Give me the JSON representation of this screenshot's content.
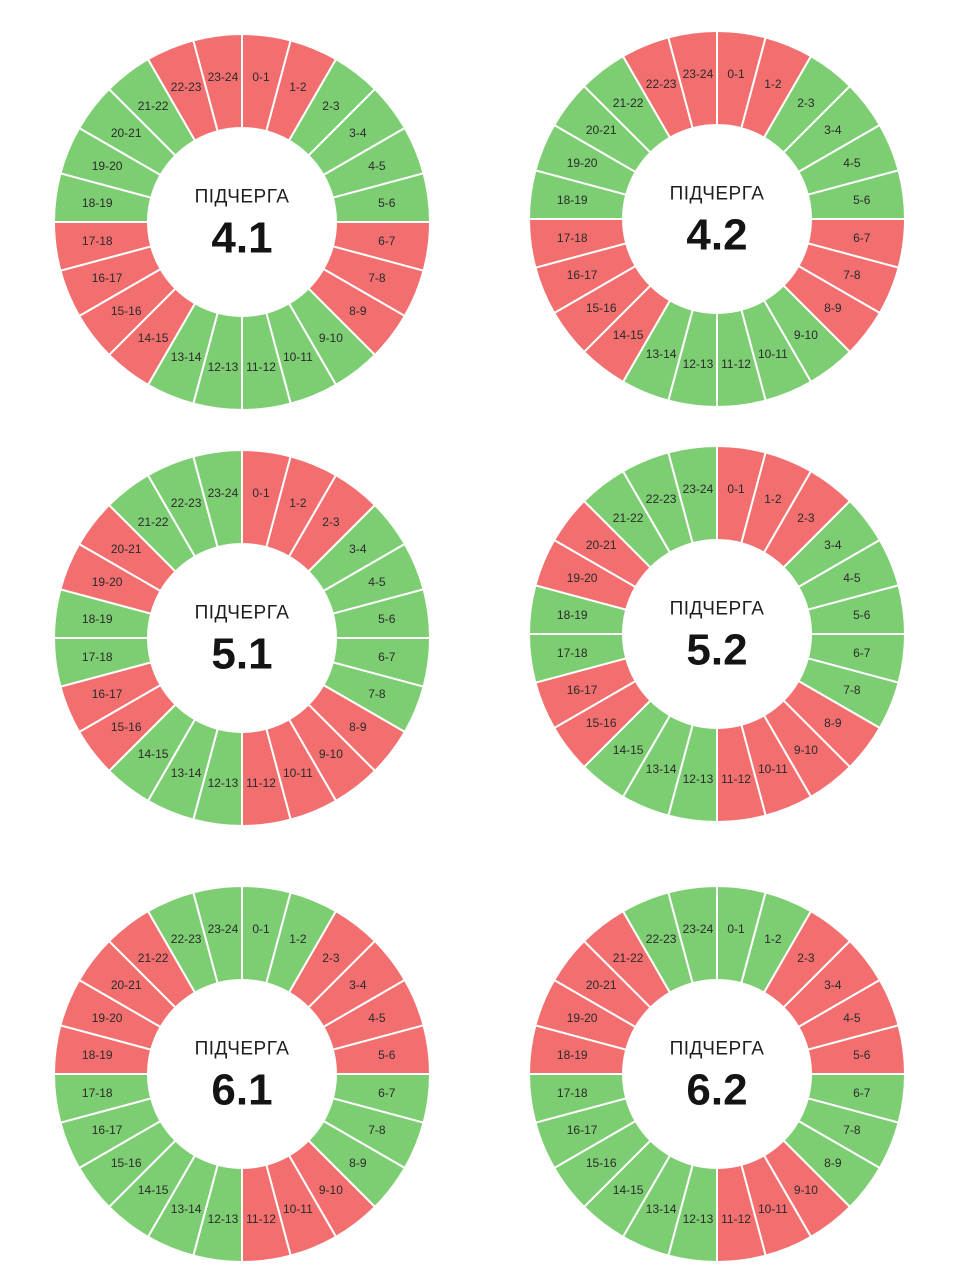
{
  "colors": {
    "on": "#7dce73",
    "off": "#f36f6f",
    "divider": "#ffffff",
    "text": "#2a2a2a",
    "center_bg": "#ffffff"
  },
  "hours": [
    "0-1",
    "1-2",
    "2-3",
    "3-4",
    "4-5",
    "5-6",
    "6-7",
    "7-8",
    "8-9",
    "9-10",
    "10-11",
    "11-12",
    "12-13",
    "13-14",
    "14-15",
    "15-16",
    "16-17",
    "17-18",
    "18-19",
    "19-20",
    "20-21",
    "21-22",
    "22-23",
    "23-24"
  ],
  "chart_data": [
    {
      "type": "pie",
      "title": "ПІДЧЕРГА",
      "queue": "4.1",
      "states": [
        "off",
        "off",
        "on",
        "on",
        "on",
        "on",
        "off",
        "off",
        "off",
        "on",
        "on",
        "on",
        "on",
        "on",
        "off",
        "off",
        "off",
        "off",
        "on",
        "on",
        "on",
        "on",
        "off",
        "off"
      ]
    },
    {
      "type": "pie",
      "title": "ПІДЧЕРГА",
      "queue": "4.2",
      "states": [
        "off",
        "off",
        "on",
        "on",
        "on",
        "on",
        "off",
        "off",
        "off",
        "on",
        "on",
        "on",
        "on",
        "on",
        "off",
        "off",
        "off",
        "off",
        "on",
        "on",
        "on",
        "on",
        "off",
        "off"
      ]
    },
    {
      "type": "pie",
      "title": "ПІДЧЕРГА",
      "queue": "5.1",
      "states": [
        "off",
        "off",
        "off",
        "on",
        "on",
        "on",
        "on",
        "on",
        "off",
        "off",
        "off",
        "off",
        "on",
        "on",
        "on",
        "off",
        "off",
        "on",
        "on",
        "off",
        "off",
        "on",
        "on",
        "on"
      ]
    },
    {
      "type": "pie",
      "title": "ПІДЧЕРГА",
      "queue": "5.2",
      "states": [
        "off",
        "off",
        "off",
        "on",
        "on",
        "on",
        "on",
        "on",
        "off",
        "off",
        "off",
        "off",
        "on",
        "on",
        "on",
        "off",
        "off",
        "on",
        "on",
        "off",
        "off",
        "on",
        "on",
        "on"
      ]
    },
    {
      "type": "pie",
      "title": "ПІДЧЕРГА",
      "queue": "6.1",
      "states": [
        "on",
        "on",
        "off",
        "off",
        "off",
        "off",
        "on",
        "on",
        "on",
        "off",
        "off",
        "off",
        "on",
        "on",
        "on",
        "on",
        "on",
        "on",
        "off",
        "off",
        "off",
        "off",
        "on",
        "on"
      ]
    },
    {
      "type": "pie",
      "title": "ПІДЧЕРГА",
      "queue": "6.2",
      "states": [
        "on",
        "on",
        "off",
        "off",
        "off",
        "off",
        "on",
        "on",
        "on",
        "off",
        "off",
        "off",
        "on",
        "on",
        "on",
        "on",
        "on",
        "on",
        "off",
        "off",
        "off",
        "off",
        "on",
        "on"
      ]
    }
  ]
}
